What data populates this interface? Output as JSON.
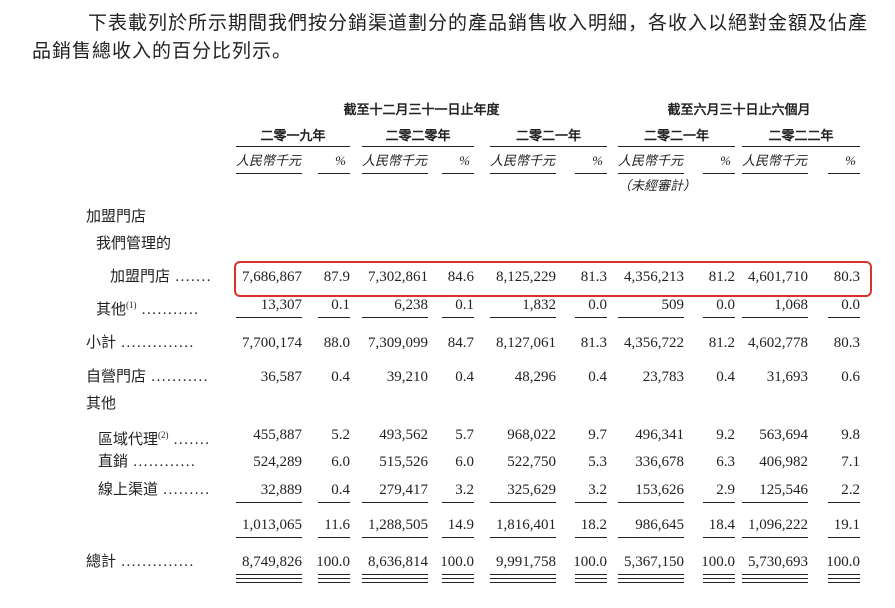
{
  "intro": "下表載列於所示期間我們按分銷渠道劃分的產品銷售收入明細，各收入以絕對金額及佔產品銷售總收入的百分比列示。",
  "table": {
    "groups": [
      "截至十二月三十一日止年度",
      "截至六月三十日止六個月"
    ],
    "columns": [
      {
        "year": "二零一九年",
        "amount_unit": "人民幣千元",
        "pct_unit": "%"
      },
      {
        "year": "二零二零年",
        "amount_unit": "人民幣千元",
        "pct_unit": "%"
      },
      {
        "year": "二零二一年",
        "amount_unit": "人民幣千元",
        "pct_unit": "%"
      },
      {
        "year": "二零二一年",
        "amount_unit": "人民幣千元",
        "pct_unit": "%",
        "note": "（未經審計）"
      },
      {
        "year": "二零二二年",
        "amount_unit": "人民幣千元",
        "pct_unit": "%"
      }
    ],
    "rows": [
      {
        "label": "加盟門店"
      },
      {
        "label": "我們管理的"
      },
      {
        "label": "加盟門店",
        "leader": ".......",
        "values": [
          "7,686,867",
          "87.9",
          "7,302,861",
          "84.6",
          "8,125,229",
          "81.3",
          "4,356,213",
          "81.2",
          "4,601,710",
          "80.3"
        ]
      },
      {
        "label": "其他",
        "note": "(1)",
        "leader": "...........",
        "values": [
          "13,307",
          "0.1",
          "6,238",
          "0.1",
          "1,832",
          "0.0",
          "509",
          "0.0",
          "1,068",
          "0.0"
        ]
      },
      {
        "label": "小計",
        "leader": "..............",
        "values": [
          "7,700,174",
          "88.0",
          "7,309,099",
          "84.7",
          "8,127,061",
          "81.3",
          "4,356,722",
          "81.2",
          "4,602,778",
          "80.3"
        ]
      },
      {
        "label": "自營門店",
        "leader": "...........",
        "values": [
          "36,587",
          "0.4",
          "39,210",
          "0.4",
          "48,296",
          "0.4",
          "23,783",
          "0.4",
          "31,693",
          "0.6"
        ]
      },
      {
        "label": "其他"
      },
      {
        "label": "區域代理",
        "note": "(2)",
        "leader": ".......",
        "values": [
          "455,887",
          "5.2",
          "493,562",
          "5.7",
          "968,022",
          "9.7",
          "496,341",
          "9.2",
          "563,694",
          "9.8"
        ]
      },
      {
        "label": "直銷",
        "leader": "............",
        "values": [
          "524,289",
          "6.0",
          "515,526",
          "6.0",
          "522,750",
          "5.3",
          "336,678",
          "6.3",
          "406,982",
          "7.1"
        ]
      },
      {
        "label": "線上渠道",
        "leader": ".........",
        "values": [
          "32,889",
          "0.4",
          "279,417",
          "3.2",
          "325,629",
          "3.2",
          "153,626",
          "2.9",
          "125,546",
          "2.2"
        ]
      },
      {
        "values": [
          "1,013,065",
          "11.6",
          "1,288,505",
          "14.9",
          "1,816,401",
          "18.2",
          "986,645",
          "18.4",
          "1,096,222",
          "19.1"
        ]
      },
      {
        "label": "總計",
        "leader": "..............",
        "values": [
          "8,749,826",
          "100.0",
          "8,636,814",
          "100.0",
          "9,991,758",
          "100.0",
          "5,367,150",
          "100.0",
          "5,730,693",
          "100.0"
        ]
      }
    ]
  }
}
